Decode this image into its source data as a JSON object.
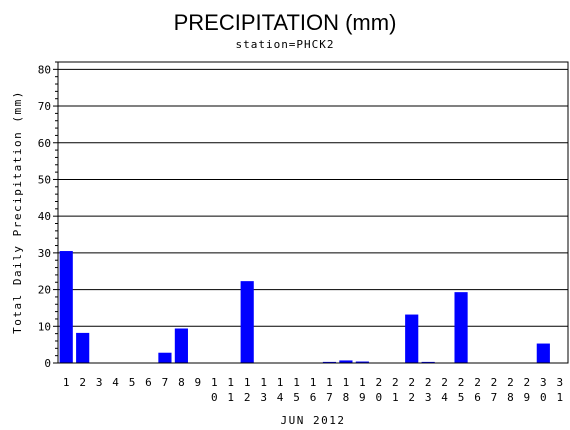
{
  "chart_data": {
    "type": "bar",
    "title": "PRECIPITATION (mm)",
    "subtitle": "station=PHCK2",
    "xlabel": "JUN 2012",
    "ylabel": "Total Daily Precipitation (mm)",
    "categories": [
      "1",
      "2",
      "3",
      "4",
      "5",
      "6",
      "7",
      "8",
      "9",
      "10",
      "11",
      "12",
      "13",
      "14",
      "15",
      "16",
      "17",
      "18",
      "19",
      "20",
      "21",
      "22",
      "23",
      "24",
      "25",
      "26",
      "27",
      "28",
      "29",
      "30",
      "31"
    ],
    "values": [
      30.5,
      8.2,
      0,
      0,
      0,
      0,
      2.8,
      9.4,
      0,
      0,
      0,
      22.3,
      0,
      0,
      0,
      0,
      0.3,
      0.7,
      0.4,
      0,
      0,
      13.2,
      0.3,
      0,
      19.3,
      0,
      0,
      0,
      0,
      5.3,
      0
    ],
    "ylim": [
      0,
      82
    ],
    "yticks": [
      0,
      10,
      20,
      30,
      40,
      50,
      60,
      70,
      80
    ],
    "grid": "horizontal",
    "legend": "none",
    "bar_color": "#0000ff",
    "grid_color": "#000000"
  }
}
